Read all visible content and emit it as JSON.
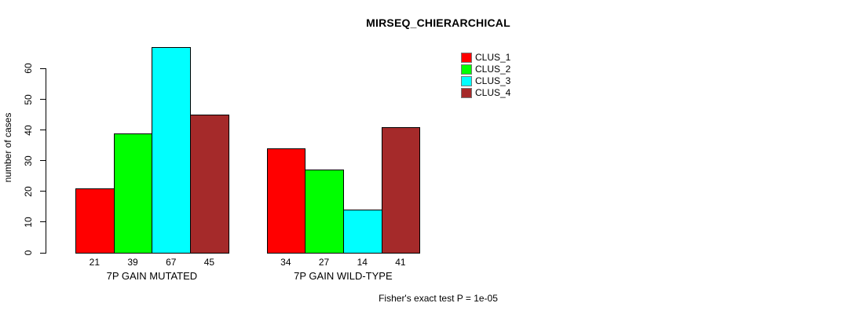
{
  "chart_data": {
    "type": "bar",
    "title": "MIRSEQ_CHIERARCHICAL",
    "ylabel": "number of cases",
    "xlabel": "",
    "categories": [
      "7P GAIN MUTATED",
      "7P GAIN WILD-TYPE"
    ],
    "series": [
      {
        "name": "CLUS_1",
        "color": "#FF0000",
        "values": [
          21,
          34
        ]
      },
      {
        "name": "CLUS_2",
        "color": "#00FF00",
        "values": [
          39,
          27
        ]
      },
      {
        "name": "CLUS_3",
        "color": "#00FFFF",
        "values": [
          67,
          14
        ]
      },
      {
        "name": "CLUS_4",
        "color": "#A52A2A",
        "values": [
          45,
          41
        ]
      }
    ],
    "yticks": [
      0,
      10,
      20,
      30,
      40,
      50,
      60
    ],
    "ylim": [
      0,
      67
    ],
    "bar_value_labels": [
      [
        21,
        39,
        67,
        45
      ],
      [
        34,
        27,
        14,
        41
      ]
    ],
    "legend_position": "top-right",
    "grid": false,
    "annotation": "Fisher's exact test P = 1e-05"
  }
}
